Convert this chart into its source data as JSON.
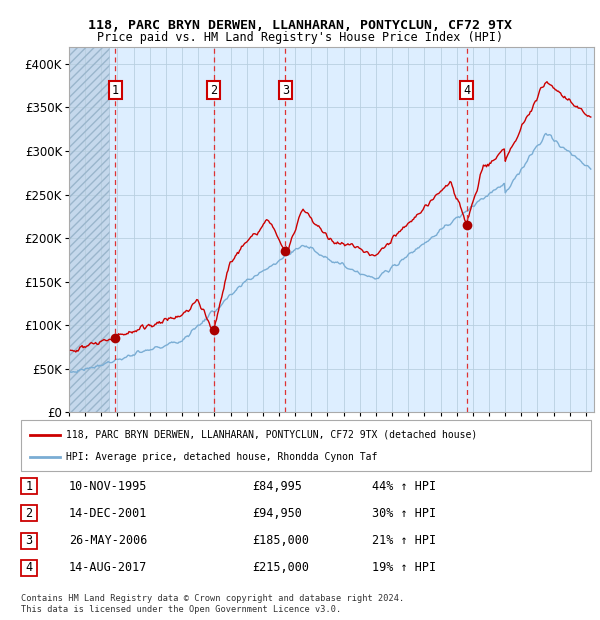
{
  "title_line1": "118, PARC BRYN DERWEN, LLANHARAN, PONTYCLUN, CF72 9TX",
  "title_line2": "Price paid vs. HM Land Registry's House Price Index (HPI)",
  "legend_line1": "118, PARC BRYN DERWEN, LLANHARAN, PONTYCLUN, CF72 9TX (detached house)",
  "legend_line2": "HPI: Average price, detached house, Rhondda Cynon Taf",
  "footer_line1": "Contains HM Land Registry data © Crown copyright and database right 2024.",
  "footer_line2": "This data is licensed under the Open Government Licence v3.0.",
  "transactions": [
    {
      "num": 1,
      "date": "10-NOV-1995",
      "price": 84995,
      "hpi_pct": "44% ↑ HPI",
      "date_dec": 1995.87
    },
    {
      "num": 2,
      "date": "14-DEC-2001",
      "price": 94950,
      "hpi_pct": "30% ↑ HPI",
      "date_dec": 2001.96
    },
    {
      "num": 3,
      "date": "26-MAY-2006",
      "price": 185000,
      "hpi_pct": "21% ↑ HPI",
      "date_dec": 2006.4
    },
    {
      "num": 4,
      "date": "14-AUG-2017",
      "price": 215000,
      "hpi_pct": "19% ↑ HPI",
      "date_dec": 2017.62
    }
  ],
  "property_color": "#cc0000",
  "hpi_color": "#7aadd4",
  "background_plot": "#ddeeff",
  "ylim": [
    0,
    420000
  ],
  "xlim_start": 1993.0,
  "xlim_end": 2025.5,
  "hatch_end": 1995.5
}
